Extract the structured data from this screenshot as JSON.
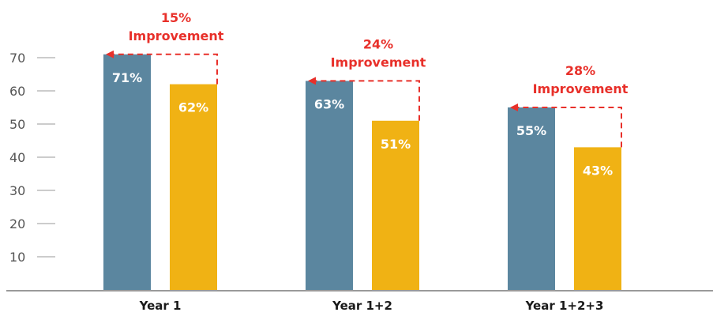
{
  "colors": {
    "series_a": "#5b869f",
    "series_b": "#f0b214",
    "annotation": "#e8302a",
    "axis": "#9a9a9a",
    "tick_text": "#555555",
    "category_text": "#1a1a1a"
  },
  "chart_data": {
    "type": "bar",
    "title": "",
    "xlabel": "",
    "ylabel": "",
    "ylim": [
      0,
      75
    ],
    "yticks": [
      10,
      20,
      30,
      40,
      50,
      60,
      70
    ],
    "grid": false,
    "legend": "none",
    "categories": [
      "Year 1",
      "Year 1+2",
      "Year 1+2+3"
    ],
    "series": [
      {
        "values": [
          71,
          63,
          55
        ],
        "labels": [
          "71%",
          "63%",
          "55%"
        ],
        "color": "#5b869f"
      },
      {
        "values": [
          62,
          51,
          43
        ],
        "labels": [
          "62%",
          "51%",
          "43%"
        ],
        "color": "#f0b214"
      }
    ],
    "annotations": [
      {
        "percent": "15%",
        "text": "Improvement"
      },
      {
        "percent": "24%",
        "text": "Improvement"
      },
      {
        "percent": "28%",
        "text": "Improvement"
      }
    ]
  }
}
